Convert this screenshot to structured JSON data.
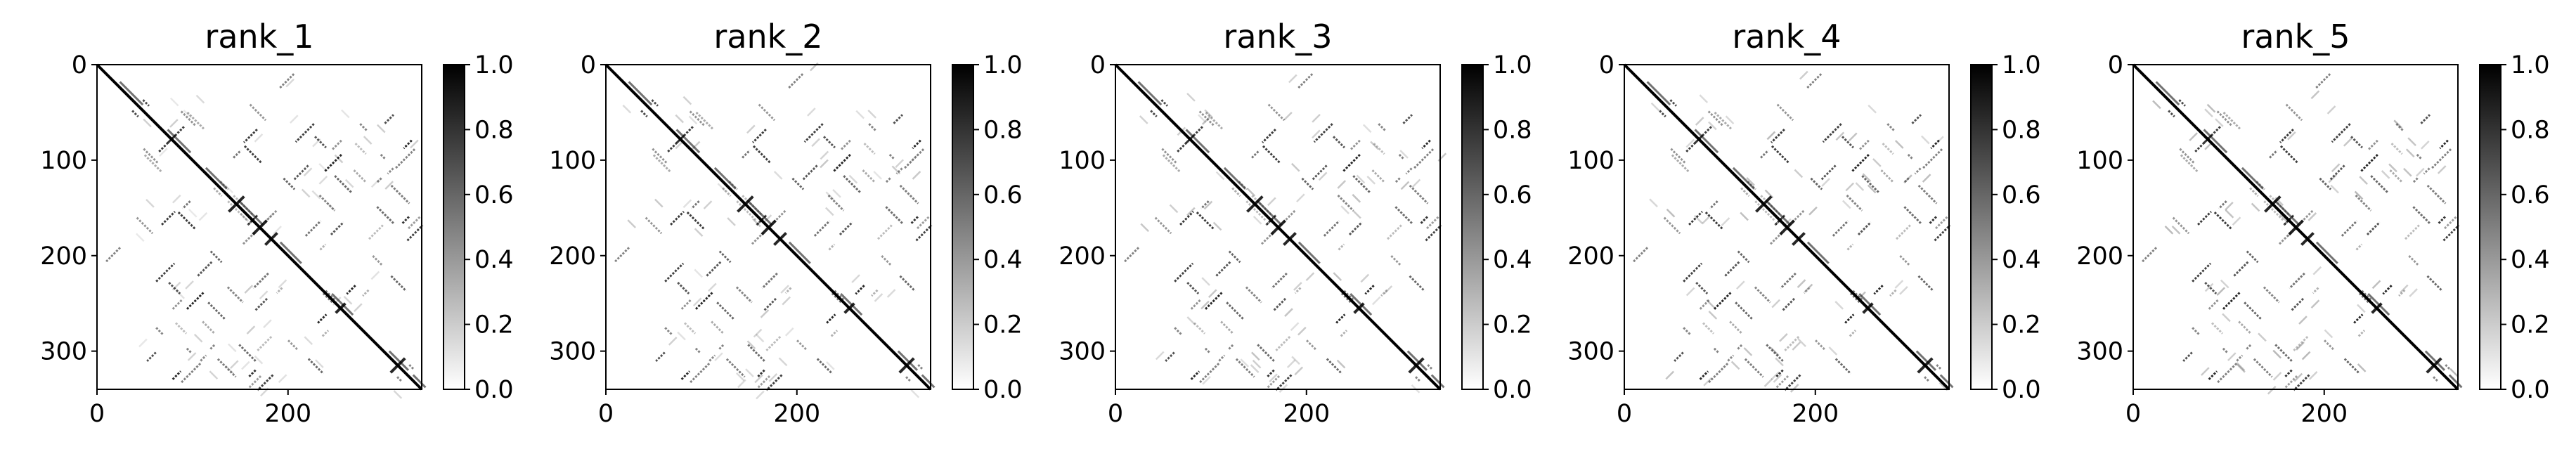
{
  "chart_data": [
    {
      "type": "heatmap",
      "title": "rank_1",
      "matrix_size": 340,
      "xticks": [
        "0",
        "200"
      ],
      "yticks": [
        "0",
        "100",
        "200",
        "300"
      ],
      "colorbar": {
        "range": [
          0.0,
          1.0
        ],
        "ticks": [
          "0.0",
          "0.2",
          "0.4",
          "0.6",
          "0.8",
          "1.0"
        ],
        "colormap": "Greys"
      }
    },
    {
      "type": "heatmap",
      "title": "rank_2",
      "matrix_size": 340,
      "xticks": [
        "0",
        "200"
      ],
      "yticks": [
        "0",
        "100",
        "200",
        "300"
      ],
      "colorbar": {
        "range": [
          0.0,
          1.0
        ],
        "ticks": [
          "0.0",
          "0.2",
          "0.4",
          "0.6",
          "0.8",
          "1.0"
        ],
        "colormap": "Greys"
      }
    },
    {
      "type": "heatmap",
      "title": "rank_3",
      "matrix_size": 340,
      "xticks": [
        "0",
        "200"
      ],
      "yticks": [
        "0",
        "100",
        "200",
        "300"
      ],
      "colorbar": {
        "range": [
          0.0,
          1.0
        ],
        "ticks": [
          "0.0",
          "0.2",
          "0.4",
          "0.6",
          "0.8",
          "1.0"
        ],
        "colormap": "Greys"
      }
    },
    {
      "type": "heatmap",
      "title": "rank_4",
      "matrix_size": 340,
      "xticks": [
        "0",
        "200"
      ],
      "yticks": [
        "0",
        "100",
        "200",
        "300"
      ],
      "colorbar": {
        "range": [
          0.0,
          1.0
        ],
        "ticks": [
          "0.0",
          "0.2",
          "0.4",
          "0.6",
          "0.8",
          "1.0"
        ],
        "colormap": "Greys"
      }
    },
    {
      "type": "heatmap",
      "title": "rank_5",
      "matrix_size": 340,
      "xticks": [
        "0",
        "200"
      ],
      "yticks": [
        "0",
        "100",
        "200",
        "300"
      ],
      "colorbar": {
        "range": [
          0.0,
          1.0
        ],
        "ticks": [
          "0.0",
          "0.2",
          "0.4",
          "0.6",
          "0.8",
          "1.0"
        ],
        "colormap": "Greys"
      }
    }
  ]
}
